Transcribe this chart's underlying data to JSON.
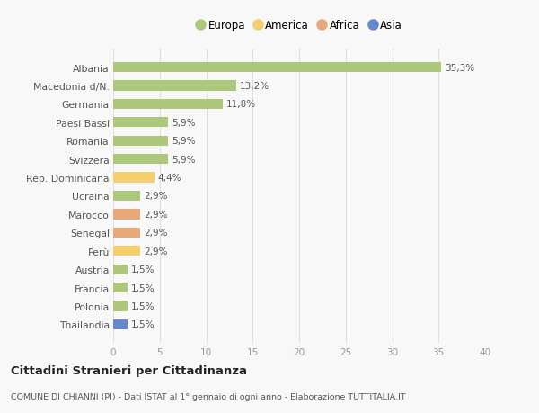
{
  "categories": [
    "Thailandia",
    "Polonia",
    "Francia",
    "Austria",
    "Perù",
    "Senegal",
    "Marocco",
    "Ucraina",
    "Rep. Dominicana",
    "Svizzera",
    "Romania",
    "Paesi Bassi",
    "Germania",
    "Macedonia d/N.",
    "Albania"
  ],
  "values": [
    1.5,
    1.5,
    1.5,
    1.5,
    2.9,
    2.9,
    2.9,
    2.9,
    4.4,
    5.9,
    5.9,
    5.9,
    11.8,
    13.2,
    35.3
  ],
  "labels": [
    "1,5%",
    "1,5%",
    "1,5%",
    "1,5%",
    "2,9%",
    "2,9%",
    "2,9%",
    "2,9%",
    "4,4%",
    "5,9%",
    "5,9%",
    "5,9%",
    "11,8%",
    "13,2%",
    "35,3%"
  ],
  "colors": [
    "#6688cc",
    "#adc87a",
    "#adc87a",
    "#adc87a",
    "#f5ce6e",
    "#e8a87a",
    "#e8a87a",
    "#adc87a",
    "#f5ce6e",
    "#adc87a",
    "#adc87a",
    "#adc87a",
    "#adc87a",
    "#adc87a",
    "#adc87a"
  ],
  "legend_labels": [
    "Europa",
    "America",
    "Africa",
    "Asia"
  ],
  "legend_colors": [
    "#adc87a",
    "#f5ce6e",
    "#e8a87a",
    "#6688cc"
  ],
  "title": "Cittadini Stranieri per Cittadinanza",
  "subtitle": "COMUNE DI CHIANNI (PI) - Dati ISTAT al 1° gennaio di ogni anno - Elaborazione TUTTITALIA.IT",
  "xlim": [
    0,
    40
  ],
  "xticks": [
    0,
    5,
    10,
    15,
    20,
    25,
    30,
    35,
    40
  ],
  "background_color": "#f8f8f8",
  "bar_height": 0.55,
  "grid_color": "#e0e0e0"
}
